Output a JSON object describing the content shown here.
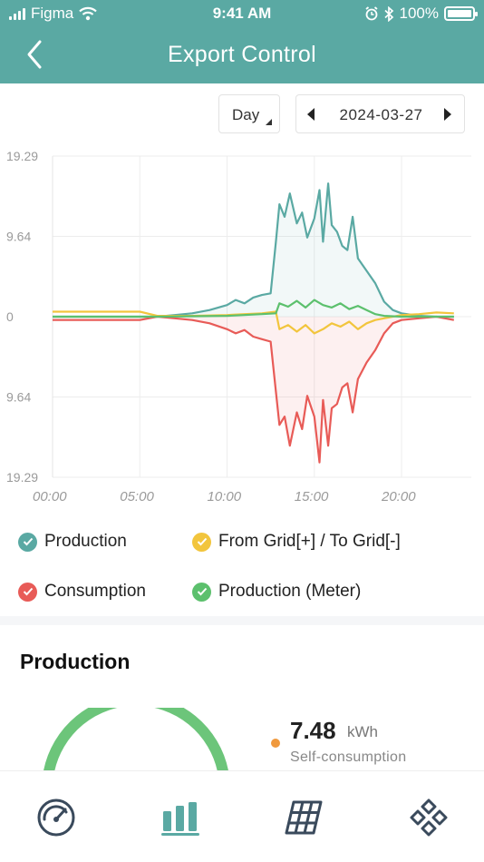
{
  "status_bar": {
    "carrier": "Figma",
    "time": "9:41 AM",
    "battery": "100%"
  },
  "header": {
    "title": "Export Control"
  },
  "controls": {
    "period": "Day",
    "date": "2024-03-27"
  },
  "colors": {
    "header": "#5aa9a3",
    "production": "#5aa9a3",
    "grid": "#f2c53d",
    "consumption": "#e85b57",
    "meter": "#5cc06d",
    "gauge": "#6cc57a",
    "self_consumption": "#f0993d"
  },
  "chart_data": {
    "type": "line",
    "y_tick_labels": [
      "19.29",
      "9.64",
      "0",
      "9.64",
      "19.29"
    ],
    "y_ticks": [
      19.29,
      9.64,
      0,
      -9.64,
      -19.29
    ],
    "ylim": [
      -19.29,
      19.29
    ],
    "x_tick_labels": [
      "00:00",
      "05:00",
      "10:00",
      "15:00",
      "20:00"
    ],
    "x_ticks": [
      0,
      5,
      10,
      15,
      20
    ],
    "xlim": [
      0,
      24
    ],
    "grid": true,
    "series": [
      {
        "name": "Production",
        "color": "#5aa9a3",
        "x": [
          0,
          5,
          6,
          7,
          8,
          9,
          10,
          10.5,
          11,
          11.5,
          12,
          12.5,
          12.8,
          13,
          13.3,
          13.6,
          14,
          14.3,
          14.6,
          15,
          15.3,
          15.5,
          15.8,
          16,
          16.3,
          16.6,
          16.9,
          17.2,
          17.5,
          18,
          18.5,
          19,
          19.5,
          20,
          21,
          22,
          23
        ],
        "y": [
          0,
          0,
          0,
          0.2,
          0.4,
          0.8,
          1.4,
          2.0,
          1.6,
          2.3,
          2.6,
          2.8,
          9.0,
          13.5,
          12.0,
          14.8,
          11.2,
          12.5,
          9.5,
          11.8,
          15.2,
          9.0,
          16.0,
          11.0,
          10.2,
          8.5,
          8.0,
          12.0,
          7.0,
          5.5,
          4.0,
          1.8,
          0.8,
          0.4,
          0.1,
          0,
          0
        ]
      },
      {
        "name": "From Grid[+] / To Grid[-]",
        "color": "#f2c53d",
        "x": [
          0,
          5,
          6,
          8,
          10,
          11,
          12,
          12.8,
          13,
          13.5,
          14,
          14.5,
          15,
          15.5,
          16,
          16.5,
          17,
          17.5,
          18,
          18.5,
          19,
          20,
          21,
          22,
          23
        ],
        "y": [
          0.6,
          0.6,
          0.1,
          0.1,
          0.2,
          0.3,
          0.4,
          0.6,
          -1.5,
          -1.0,
          -1.8,
          -1.0,
          -2.0,
          -1.5,
          -0.8,
          -1.2,
          -0.6,
          -1.5,
          -0.8,
          -0.4,
          -0.2,
          0.2,
          0.3,
          0.5,
          0.4
        ]
      },
      {
        "name": "Consumption",
        "color": "#e85b57",
        "x": [
          0,
          5,
          6,
          7,
          8,
          9,
          10,
          10.5,
          11,
          11.5,
          12,
          12.5,
          12.8,
          13,
          13.3,
          13.6,
          14,
          14.3,
          14.6,
          15,
          15.3,
          15.5,
          15.8,
          16,
          16.3,
          16.6,
          16.9,
          17.2,
          17.5,
          18,
          18.5,
          19,
          19.5,
          20,
          21,
          22,
          23
        ],
        "y": [
          -0.4,
          -0.4,
          0,
          -0.2,
          -0.4,
          -0.8,
          -1.5,
          -2.0,
          -1.6,
          -2.4,
          -2.7,
          -3.0,
          -9.0,
          -13.0,
          -12.0,
          -15.5,
          -11.5,
          -13.5,
          -9.5,
          -12.0,
          -17.5,
          -10.0,
          -15.5,
          -11.0,
          -10.5,
          -8.5,
          -8.0,
          -11.5,
          -7.5,
          -5.5,
          -4.0,
          -2.0,
          -0.8,
          -0.4,
          -0.2,
          0,
          -0.4
        ]
      },
      {
        "name": "Production (Meter)",
        "color": "#5cc06d",
        "x": [
          0,
          6,
          10,
          12,
          12.8,
          13,
          13.5,
          14,
          14.5,
          15,
          15.5,
          16,
          16.5,
          17,
          17.5,
          18,
          18.5,
          19,
          20,
          22,
          23
        ],
        "y": [
          0,
          0,
          0.1,
          0.3,
          0.4,
          1.6,
          1.2,
          1.9,
          1.1,
          2.0,
          1.4,
          1.1,
          1.6,
          0.9,
          1.3,
          0.8,
          0.3,
          0.1,
          0,
          0,
          0
        ]
      }
    ]
  },
  "legend": [
    {
      "label": "Production"
    },
    {
      "label": "From Grid[+] / To Grid[-]"
    },
    {
      "label": "Consumption"
    },
    {
      "label": "Production (Meter)"
    }
  ],
  "production": {
    "title": "Production",
    "value": "7.48",
    "unit": "kWh",
    "label": "Self-consumption"
  },
  "tabs": [
    {
      "icon": "gauge-icon"
    },
    {
      "icon": "bar-chart-icon"
    },
    {
      "icon": "solar-panel-icon"
    },
    {
      "icon": "devices-icon"
    }
  ]
}
